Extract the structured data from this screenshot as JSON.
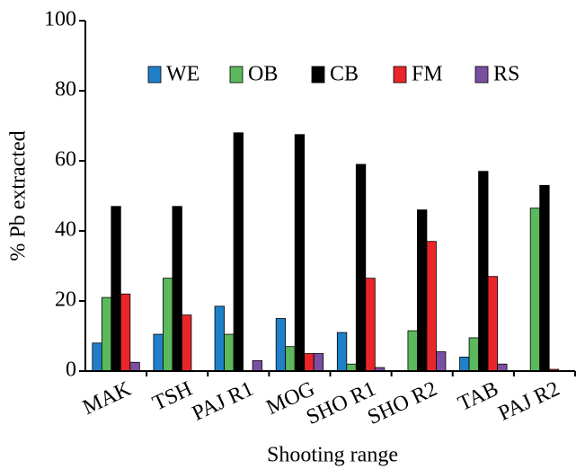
{
  "chart_data": {
    "type": "bar",
    "x_label": "Shooting range",
    "y_label": "% Pb extracted",
    "categories": [
      "MAK",
      "TSH",
      "PAJ R1",
      "MOG",
      "SHO R1",
      "SHO R2",
      "TAB",
      "PAJ R2"
    ],
    "series": [
      {
        "name": "WE",
        "color": "#1f80c9",
        "values": [
          8,
          10.5,
          18.5,
          15,
          11,
          0,
          4,
          0
        ]
      },
      {
        "name": "OB",
        "color": "#5cb85c",
        "values": [
          21,
          26.5,
          10.5,
          7,
          2,
          11.5,
          9.5,
          46.5
        ]
      },
      {
        "name": "CB",
        "color": "#000000",
        "values": [
          47,
          47,
          68,
          67.5,
          59,
          46,
          57,
          53
        ]
      },
      {
        "name": "FM",
        "color": "#e8262a",
        "values": [
          22,
          16,
          0,
          5,
          26.5,
          37,
          27,
          0.5
        ]
      },
      {
        "name": "RS",
        "color": "#7b4fa0",
        "values": [
          2.5,
          0,
          3,
          5,
          1,
          5.5,
          2,
          0
        ]
      }
    ],
    "ylim": [
      0,
      100
    ],
    "yticks": [
      0,
      20,
      40,
      60,
      80,
      100
    ]
  }
}
